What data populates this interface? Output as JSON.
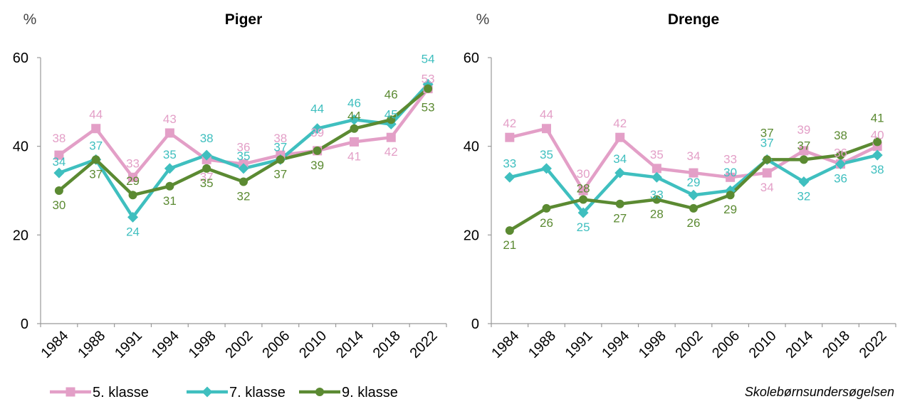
{
  "source": "Skolebørnsundersøgelsen",
  "legend": [
    {
      "name": "5. klasse",
      "color": "#e39fc7",
      "marker": "square"
    },
    {
      "name": "7. klasse",
      "color": "#3fbfbf",
      "marker": "diamond"
    },
    {
      "name": "9. klasse",
      "color": "#5b8a32",
      "marker": "circle"
    }
  ],
  "chart_data": [
    {
      "type": "line",
      "title": "Piger",
      "unit": "%",
      "ylim": [
        0,
        60
      ],
      "yticks": [
        0,
        20,
        40,
        60
      ],
      "categories": [
        "1984",
        "1988",
        "1991",
        "1994",
        "1998",
        "2002",
        "2006",
        "2010",
        "2014",
        "2018",
        "2022"
      ],
      "series": [
        {
          "name": "5. klasse",
          "color": "#e39fc7",
          "values": [
            38,
            44,
            33,
            43,
            37,
            36,
            38,
            39,
            41,
            42,
            53
          ]
        },
        {
          "name": "7. klasse",
          "color": "#3fbfbf",
          "values": [
            34,
            37,
            24,
            35,
            38,
            35,
            37,
            44,
            46,
            45,
            54
          ]
        },
        {
          "name": "9. klasse",
          "color": "#5b8a32",
          "values": [
            30,
            37,
            29,
            31,
            35,
            32,
            37,
            39,
            44,
            46,
            53
          ]
        }
      ]
    },
    {
      "type": "line",
      "title": "Drenge",
      "unit": "%",
      "ylim": [
        0,
        60
      ],
      "yticks": [
        0,
        20,
        40,
        60
      ],
      "categories": [
        "1984",
        "1988",
        "1991",
        "1994",
        "1998",
        "2002",
        "2006",
        "2010",
        "2014",
        "2018",
        "2022"
      ],
      "series": [
        {
          "name": "5. klasse",
          "color": "#e39fc7",
          "values": [
            42,
            44,
            30,
            42,
            35,
            34,
            33,
            34,
            39,
            36,
            40
          ]
        },
        {
          "name": "7. klasse",
          "color": "#3fbfbf",
          "values": [
            33,
            35,
            25,
            34,
            33,
            29,
            30,
            37,
            32,
            36,
            38
          ]
        },
        {
          "name": "9. klasse",
          "color": "#5b8a32",
          "values": [
            21,
            26,
            28,
            27,
            28,
            26,
            29,
            37,
            37,
            38,
            41
          ]
        }
      ]
    }
  ]
}
